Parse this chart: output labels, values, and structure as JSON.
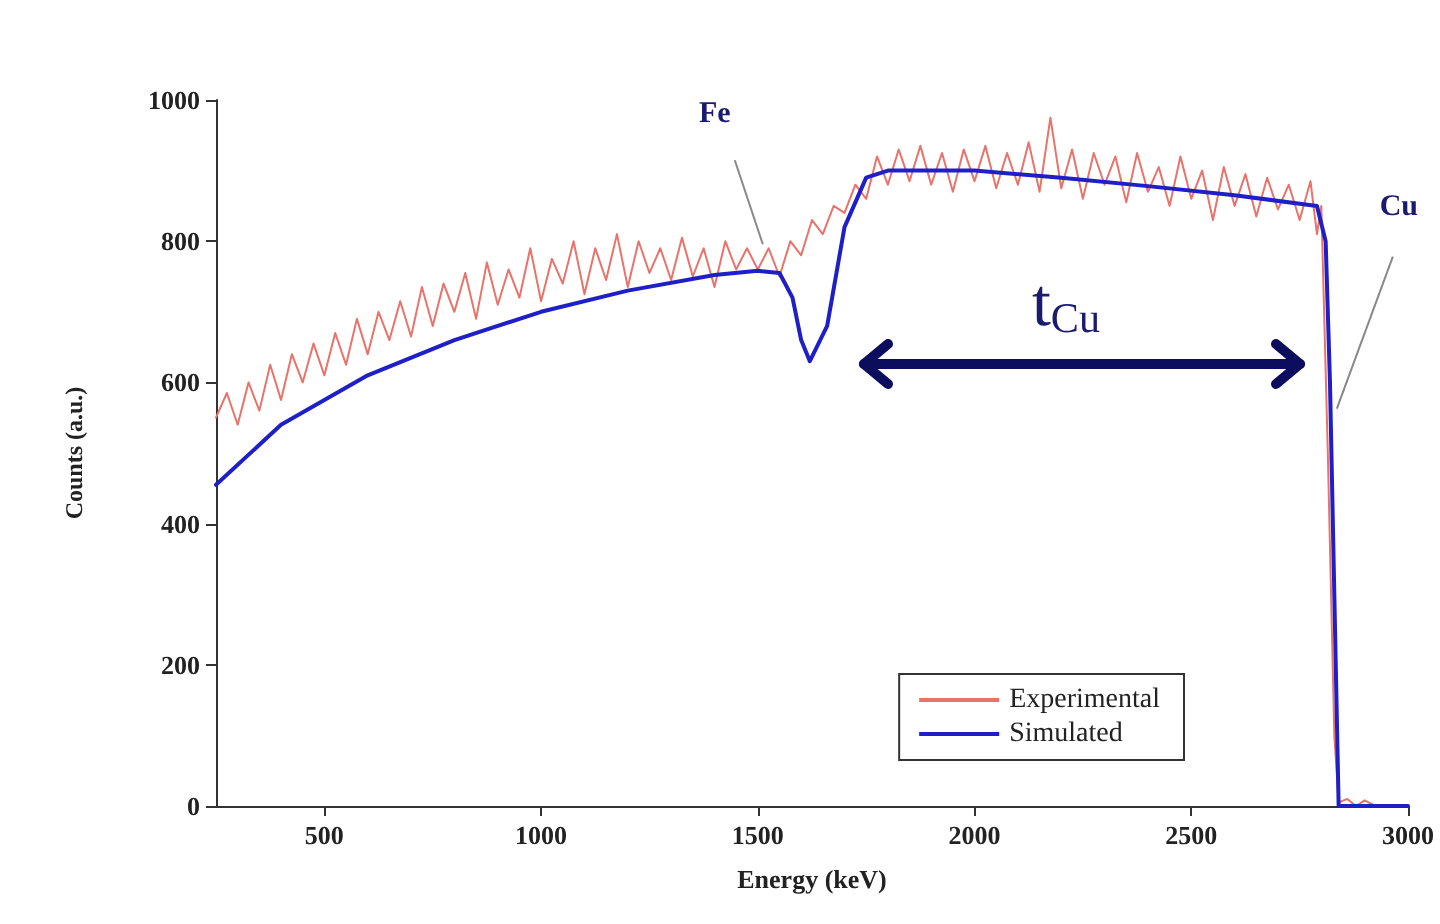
{
  "chart_data": {
    "type": "line",
    "xlabel": "Energy (keV)",
    "ylabel": "Counts (a.u.)",
    "xlim": [
      250,
      3000
    ],
    "xticks": [
      500,
      1000,
      1500,
      2000,
      2500,
      3000
    ],
    "ylim": [
      0,
      1000
    ],
    "yticks": [
      0,
      200,
      400,
      600,
      800,
      1000
    ],
    "grid": false,
    "legend": "bottom right",
    "marker": "none",
    "line_style": "solid",
    "annotations": [
      {
        "text": "Fe",
        "x": 1530,
        "y": 790
      },
      "t$_{Cu}$",
      {
        "text": "Cu",
        "x": 2822,
        "y": 560
      }
    ],
    "series": [
      {
        "name": "Experimental",
        "color": "#e8736b",
        "x": [
          250,
          275,
          300,
          325,
          350,
          375,
          400,
          425,
          450,
          475,
          500,
          525,
          550,
          575,
          600,
          625,
          650,
          675,
          700,
          725,
          750,
          775,
          800,
          825,
          850,
          875,
          900,
          925,
          950,
          975,
          1000,
          1025,
          1050,
          1075,
          1100,
          1125,
          1150,
          1175,
          1200,
          1225,
          1250,
          1275,
          1300,
          1325,
          1350,
          1375,
          1400,
          1425,
          1450,
          1475,
          1500,
          1525,
          1550,
          1575,
          1600,
          1625,
          1650,
          1675,
          1700,
          1725,
          1750,
          1775,
          1800,
          1825,
          1850,
          1875,
          1900,
          1925,
          1950,
          1975,
          2000,
          2025,
          2050,
          2075,
          2100,
          2125,
          2150,
          2175,
          2200,
          2225,
          2250,
          2275,
          2300,
          2325,
          2350,
          2375,
          2400,
          2425,
          2450,
          2475,
          2500,
          2525,
          2550,
          2575,
          2600,
          2625,
          2650,
          2675,
          2700,
          2725,
          2750,
          2775,
          2790,
          2800,
          2815,
          2830,
          2840,
          2860,
          2880,
          2900,
          2925
        ],
        "values": [
          550,
          585,
          540,
          600,
          560,
          625,
          575,
          640,
          600,
          655,
          610,
          670,
          625,
          690,
          640,
          700,
          660,
          715,
          665,
          735,
          680,
          740,
          700,
          755,
          690,
          770,
          710,
          760,
          720,
          790,
          715,
          775,
          740,
          800,
          725,
          790,
          745,
          810,
          735,
          800,
          755,
          790,
          745,
          805,
          750,
          790,
          735,
          800,
          760,
          790,
          760,
          790,
          750,
          800,
          780,
          830,
          810,
          850,
          840,
          880,
          860,
          920,
          880,
          930,
          885,
          935,
          880,
          925,
          870,
          930,
          885,
          935,
          875,
          925,
          880,
          940,
          870,
          975,
          875,
          930,
          860,
          925,
          880,
          920,
          855,
          925,
          870,
          905,
          850,
          920,
          860,
          900,
          830,
          905,
          850,
          895,
          835,
          890,
          845,
          880,
          830,
          885,
          810,
          850,
          500,
          100,
          5,
          10,
          0,
          8,
          0
        ]
      },
      {
        "name": "Simulated",
        "color": "#1f1fc8",
        "x": [
          250,
          400,
          600,
          800,
          1000,
          1200,
          1400,
          1500,
          1550,
          1580,
          1600,
          1620,
          1660,
          1700,
          1750,
          1800,
          2000,
          2200,
          2400,
          2600,
          2790,
          2810,
          2820,
          2830,
          2840,
          3000
        ],
        "values": [
          455,
          540,
          610,
          660,
          700,
          730,
          752,
          758,
          755,
          720,
          660,
          630,
          680,
          820,
          890,
          900,
          900,
          890,
          878,
          865,
          850,
          800,
          600,
          300,
          0,
          0
        ]
      }
    ]
  }
}
